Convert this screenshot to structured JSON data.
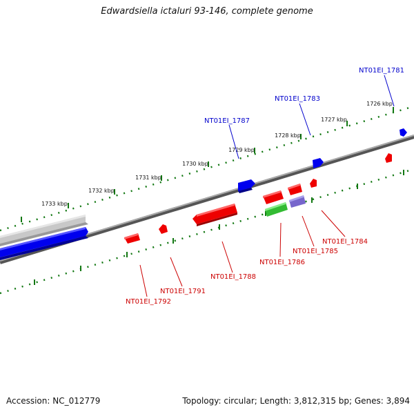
{
  "title": "Edwardsiella ictaluri 93-146, complete genome",
  "footer": {
    "accession": "Accession: NC_012779",
    "summary": "Topology: circular; Length: 3,812,315 bp; Genes: 3,894"
  },
  "colors": {
    "forward": "#0000ee",
    "reverse": "#ee0000",
    "rna": "#33bb33",
    "other": "#7766cc",
    "contig": "#c0c0c0",
    "backbone": "#808080",
    "ticks": "#117711",
    "label_forward": "#0000cc",
    "label_reverse": "#cc0000"
  },
  "ruler": [
    {
      "label": "1726 kbp"
    },
    {
      "label": "1727 kbp"
    },
    {
      "label": "1728 kbp"
    },
    {
      "label": "1729 kbp"
    },
    {
      "label": "1730 kbp"
    },
    {
      "label": "1731 kbp"
    },
    {
      "label": "1732 kbp"
    },
    {
      "label": "1733 kbp"
    }
  ],
  "genes": [
    {
      "name": "NT01EI_1781",
      "strand": "forward"
    },
    {
      "name": "NT01EI_1783",
      "strand": "forward"
    },
    {
      "name": "NT01EI_1787",
      "strand": "forward"
    },
    {
      "name": "NT01EI_1784",
      "strand": "reverse"
    },
    {
      "name": "NT01EI_1785",
      "strand": "reverse"
    },
    {
      "name": "NT01EI_1786",
      "strand": "reverse"
    },
    {
      "name": "NT01EI_1788",
      "strand": "reverse"
    },
    {
      "name": "NT01EI_1791",
      "strand": "reverse"
    },
    {
      "name": "NT01EI_1792",
      "strand": "reverse"
    }
  ]
}
